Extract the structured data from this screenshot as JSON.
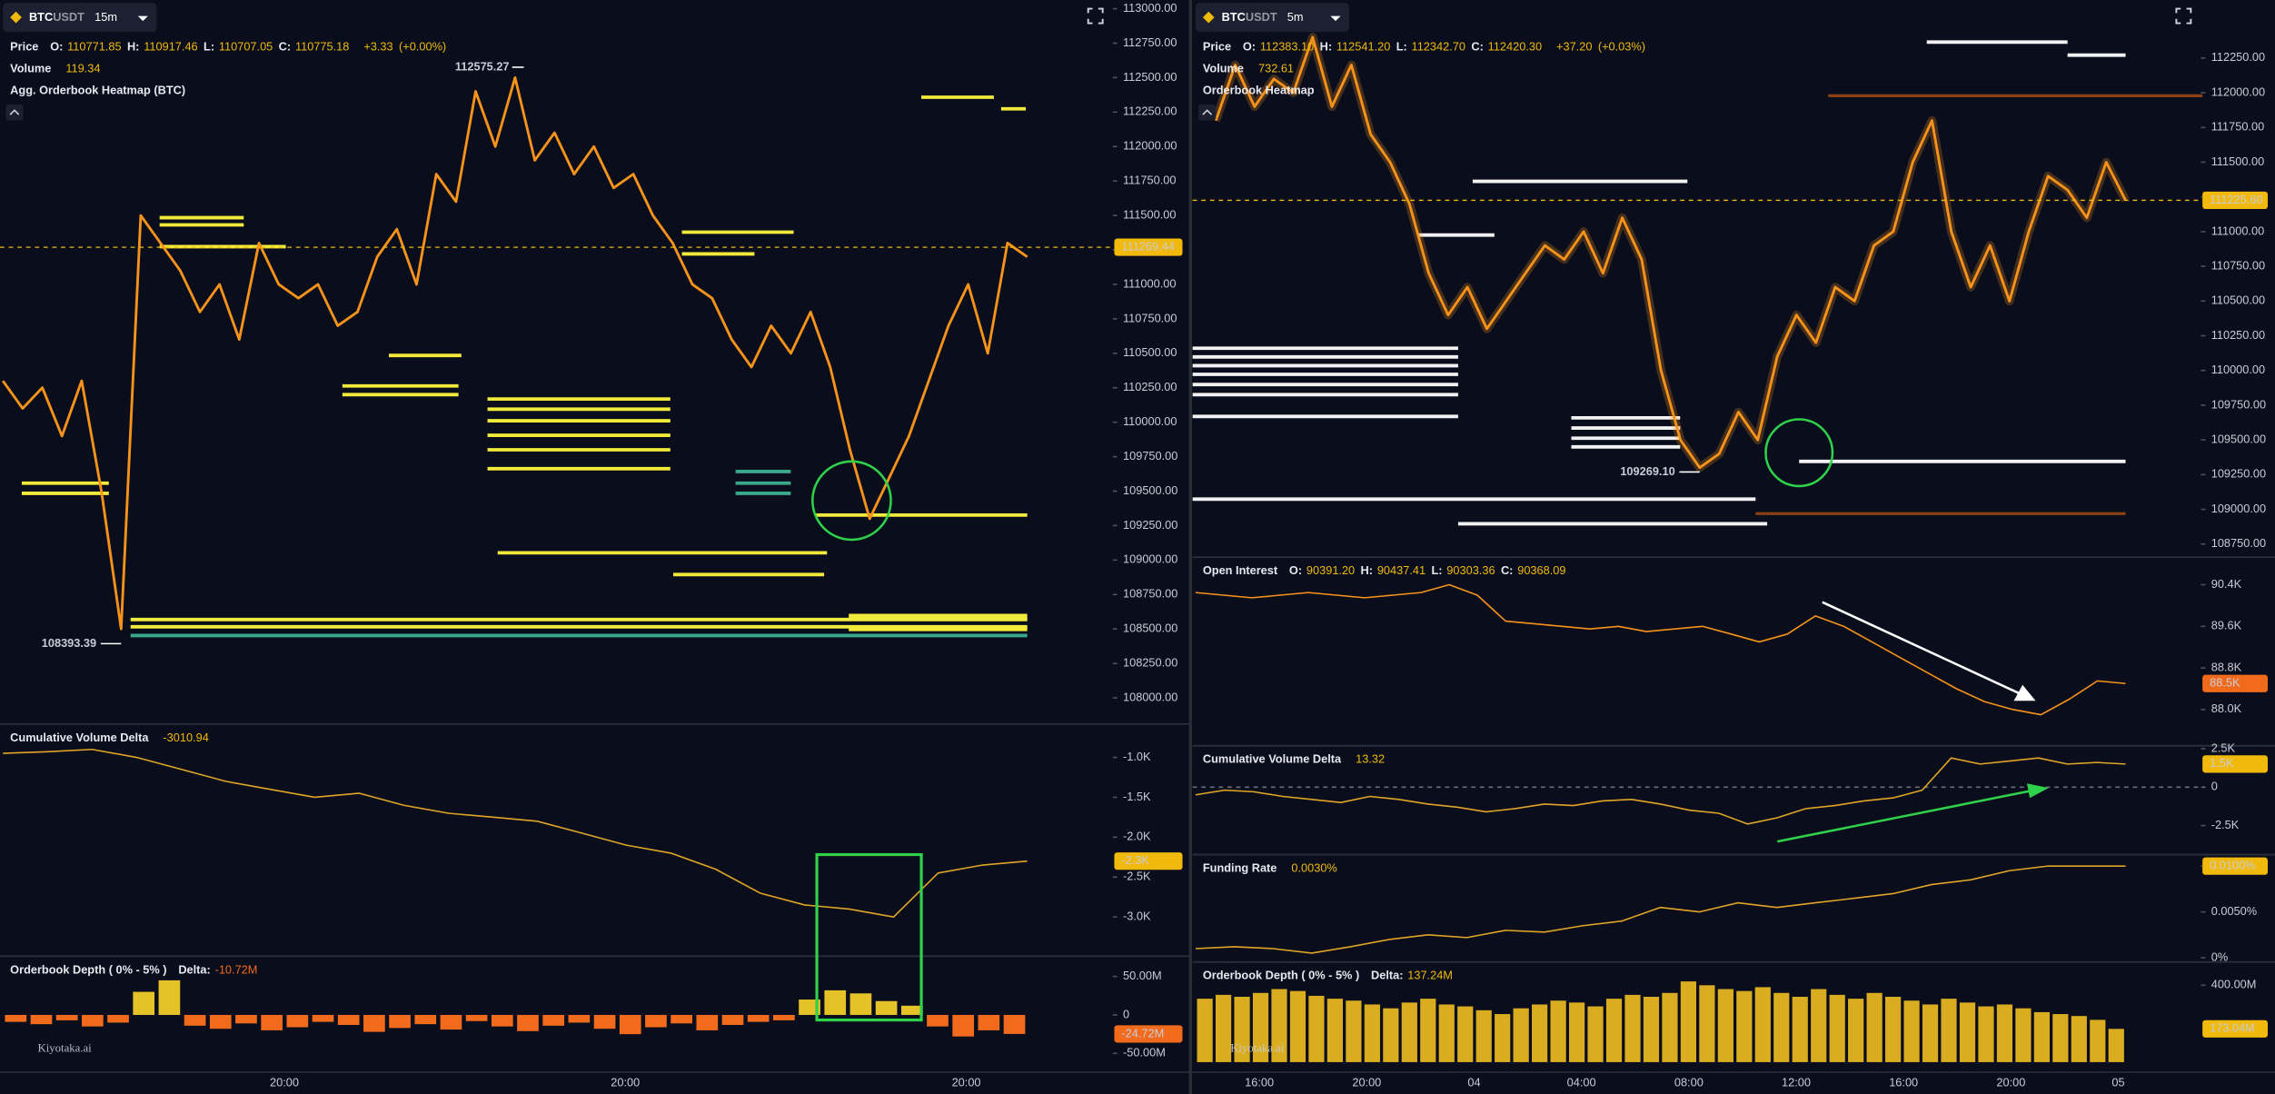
{
  "chart_data": [
    {
      "type": "line",
      "color": "#f7931a",
      "symbol": "BTC",
      "quote": "USDT",
      "interval": "15m",
      "header": [
        {
          "label": "Price",
          "fields": [
            {
              "key": "O:",
              "value": "110771.85"
            },
            {
              "key": "H:",
              "value": "110917.46"
            },
            {
              "key": "L:",
              "value": "110707.05"
            },
            {
              "key": "C:",
              "value": "110775.18"
            }
          ],
          "extra": [
            "+3.33",
            "(+0.00%)"
          ]
        },
        {
          "label": "Volume",
          "extra": [
            "119.34"
          ]
        },
        {
          "label": "Agg. Orderbook Heatmap (BTC)"
        }
      ],
      "ylim": [
        107821,
        113063
      ],
      "yticks": [
        {
          "value": 108000,
          "label": "108000.00"
        },
        {
          "value": 108250,
          "label": "108250.00"
        },
        {
          "value": 108500,
          "label": "108500.00"
        },
        {
          "value": 108750,
          "label": "108750.00"
        },
        {
          "value": 109000,
          "label": "109000.00"
        },
        {
          "value": 109250,
          "label": "109250.00"
        },
        {
          "value": 109500,
          "label": "109500.00"
        },
        {
          "value": 109750,
          "label": "109750.00"
        },
        {
          "value": 110000,
          "label": "110000.00"
        },
        {
          "value": 110250,
          "label": "110250.00"
        },
        {
          "value": 110500,
          "label": "110500.00"
        },
        {
          "value": 110750,
          "label": "110750.00"
        },
        {
          "value": 111000,
          "label": "111000.00"
        },
        {
          "value": 111250,
          "label": "111250.00"
        },
        {
          "value": 111500,
          "label": "111500.00"
        },
        {
          "value": 111750,
          "label": "111750.00"
        },
        {
          "value": 112000,
          "label": "112000.00"
        },
        {
          "value": 112250,
          "label": "112250.00"
        },
        {
          "value": 112500,
          "label": "112500.00"
        },
        {
          "value": 112750,
          "label": "112750.00"
        },
        {
          "value": 113000,
          "label": "113000.00"
        }
      ],
      "values": [
        110300,
        110100,
        110250,
        109900,
        110300,
        109500,
        108500,
        111500,
        111300,
        111100,
        110800,
        111000,
        110600,
        111300,
        111000,
        110900,
        111000,
        110700,
        110800,
        111200,
        111400,
        111000,
        111800,
        111600,
        112400,
        112000,
        112500,
        111900,
        112100,
        111800,
        112000,
        111700,
        111800,
        111500,
        111300,
        111000,
        110900,
        110600,
        110400,
        110700,
        110500,
        110800,
        110400,
        109800,
        109300,
        109600,
        109900,
        110300,
        110700,
        111000,
        110500,
        111300,
        111200
      ],
      "high": 112575.27,
      "low": 108393.39,
      "last": 111269.44,
      "last_line": true
    },
    {
      "type": "line",
      "color": "#e0a526",
      "header": [
        {
          "label": "Cumulative Volume Delta",
          "extra": [
            "-3010.94"
          ]
        }
      ],
      "ylim": [
        -3473,
        -600
      ],
      "yticks": [
        {
          "value": -1000,
          "label": "-1.0K"
        },
        {
          "value": -1500,
          "label": "-1.5K"
        },
        {
          "value": -2000,
          "label": "-2.0K"
        },
        {
          "value": -2500,
          "label": "-2.5K"
        },
        {
          "value": -3000,
          "label": "-3.0K"
        }
      ],
      "values": [
        -950,
        -930,
        -900,
        -1000,
        -1150,
        -1300,
        -1400,
        -1500,
        -1450,
        -1600,
        -1700,
        -1750,
        -1800,
        -1950,
        -2100,
        -2200,
        -2400,
        -2700,
        -2850,
        -2900,
        -3000,
        -2450,
        -2350,
        -2300
      ],
      "last": {
        "value": -2300,
        "label": "-2.3K"
      }
    },
    {
      "type": "bar",
      "color": "#e6c229",
      "negative_color": "#f26b1d",
      "tag_color": "#f26b1d",
      "readout_color": "#f26b1d",
      "header": [
        {
          "label": "Orderbook Depth ( 0% - 5% )",
          "fields": [
            {
              "key": "Delta:",
              "value": "-10.72M"
            }
          ]
        }
      ],
      "ylim": [
        -72600000,
        74500000
      ],
      "yticks": [
        {
          "value": 50000000,
          "label": "50.00M"
        },
        0,
        {
          "value": -50000000,
          "label": "-50.00M"
        }
      ],
      "values": [
        -9000000,
        -12000000,
        -7000000,
        -15000000,
        -10000000,
        30000000,
        45000000,
        -14000000,
        -18000000,
        -11000000,
        -20000000,
        -16000000,
        -9000000,
        -13000000,
        -22000000,
        -17000000,
        -12000000,
        -19000000,
        -8000000,
        -15000000,
        -21000000,
        -14000000,
        -10000000,
        -18000000,
        -25000000,
        -16000000,
        -11000000,
        -20000000,
        -13000000,
        -9000000,
        -7000000,
        20000000,
        32000000,
        28000000,
        18000000,
        12000000,
        -15000000,
        -28000000,
        -20000000,
        -24720000
      ],
      "last": {
        "value": -24720000,
        "label": "-24.72M"
      },
      "watermark": "Kiyotaka.ai",
      "xlabels": [
        "20:00",
        "20:00",
        "20:00"
      ]
    },
    {
      "type": "line",
      "color": "#f7931a",
      "glow": true,
      "symbol": "BTC",
      "quote": "USDT",
      "interval": "5m",
      "header": [
        {
          "label": "Price",
          "fields": [
            {
              "key": "O:",
              "value": "112383.10"
            },
            {
              "key": "H:",
              "value": "112541.20"
            },
            {
              "key": "L:",
              "value": "112342.70"
            },
            {
              "key": "C:",
              "value": "112420.30"
            }
          ],
          "extra": [
            "+37.20",
            "(+0.03%)"
          ]
        },
        {
          "label": "Volume",
          "extra": [
            "732.61"
          ]
        },
        {
          "label": "Orderbook Heatmap"
        }
      ],
      "ylim": [
        108666,
        112668
      ],
      "yticks": [
        {
          "value": 108750,
          "label": "108750.00"
        },
        {
          "value": 109000,
          "label": "109000.00"
        },
        {
          "value": 109250,
          "label": "109250.00"
        },
        {
          "value": 109500,
          "label": "109500.00"
        },
        {
          "value": 109750,
          "label": "109750.00"
        },
        {
          "value": 110000,
          "label": "110000.00"
        },
        {
          "value": 110250,
          "label": "110250.00"
        },
        {
          "value": 110500,
          "label": "110500.00"
        },
        {
          "value": 110750,
          "label": "110750.00"
        },
        {
          "value": 111000,
          "label": "111000.00"
        },
        {
          "value": 111250,
          "label": "111250.00"
        },
        {
          "value": 111500,
          "label": "111500.00"
        },
        {
          "value": 111750,
          "label": "111750.00"
        },
        {
          "value": 112000,
          "label": "112000.00"
        },
        {
          "value": 112250,
          "label": "112250.00"
        }
      ],
      "values": [
        111800,
        112200,
        111900,
        112100,
        112000,
        112400,
        111900,
        112200,
        111700,
        111500,
        111200,
        110700,
        110400,
        110600,
        110300,
        110500,
        110700,
        110900,
        110800,
        111000,
        110700,
        111100,
        110800,
        110000,
        109500,
        109300,
        109400,
        109700,
        109500,
        110100,
        110400,
        110200,
        110600,
        110500,
        110900,
        111000,
        111500,
        111800,
        111000,
        110600,
        110900,
        110500,
        111000,
        111400,
        111300,
        111100,
        111500,
        111225.6
      ],
      "low": {
        "value": 109269.1,
        "label": "109269.10"
      },
      "last": {
        "value": 111225.6,
        "label": "111225.60"
      },
      "last_line": true
    },
    {
      "type": "line",
      "color": "#f7931a",
      "tag_color": "#f26b1d",
      "header": [
        {
          "label": "Open Interest",
          "fields": [
            {
              "key": "O:",
              "value": "90391.20"
            },
            {
              "key": "H:",
              "value": "90437.41"
            },
            {
              "key": "L:",
              "value": "90303.36"
            },
            {
              "key": "C:",
              "value": "90368.09"
            }
          ]
        }
      ],
      "ylim": [
        87331,
        90902
      ],
      "yticks": [
        {
          "value": 90400,
          "label": "90.4K"
        },
        {
          "value": 89600,
          "label": "89.6K"
        },
        {
          "value": 88800,
          "label": "88.8K"
        },
        {
          "value": 88000,
          "label": "88.0K"
        }
      ],
      "values": [
        90250,
        90200,
        90150,
        90200,
        90250,
        90200,
        90150,
        90200,
        90250,
        90400,
        90200,
        89700,
        89650,
        89600,
        89550,
        89600,
        89500,
        89550,
        89600,
        89450,
        89300,
        89450,
        89800,
        89600,
        89300,
        89000,
        88700,
        88400,
        88150,
        88000,
        87900,
        88200,
        88550,
        88500
      ],
      "last": {
        "value": 88500,
        "label": "88.5K"
      }
    },
    {
      "type": "line",
      "color": "#e0a526",
      "zero_line": true,
      "header": [
        {
          "label": "Cumulative Volume Delta",
          "extra": [
            "13.32"
          ]
        }
      ],
      "ylim": [
        -4292,
        2594
      ],
      "yticks": [
        {
          "value": 2500,
          "label": "2.5K"
        },
        0,
        {
          "value": -2500,
          "label": "-2.5K"
        }
      ],
      "values": [
        -500,
        -200,
        -300,
        -600,
        -800,
        -1000,
        -600,
        -800,
        -1100,
        -1300,
        -1600,
        -1400,
        -1100,
        -1200,
        -900,
        -800,
        -1100,
        -1500,
        -1700,
        -2400,
        -2000,
        -1400,
        -1200,
        -900,
        -700,
        -200,
        1900,
        1500,
        1700,
        1900,
        1500,
        1600,
        1500
      ],
      "last": {
        "value": 1500,
        "label": "1.5K"
      }
    },
    {
      "type": "line",
      "color": "#e0a526",
      "header": [
        {
          "label": "Funding Rate",
          "extra": [
            "0.0030%"
          ]
        }
      ],
      "ylim": [
        -0.0003,
        0.0111
      ],
      "yticks": [
        {
          "value": 0.01,
          "label": "0.0100%"
        },
        {
          "value": 0.005,
          "label": "0.0050%"
        },
        {
          "value": 0,
          "label": "0%"
        }
      ],
      "values": [
        0.001,
        0.0012,
        0.001,
        0.0005,
        0.0012,
        0.002,
        0.0025,
        0.0022,
        0.003,
        0.0028,
        0.0035,
        0.004,
        0.0055,
        0.005,
        0.006,
        0.0055,
        0.006,
        0.0065,
        0.007,
        0.008,
        0.0085,
        0.0095,
        0.01,
        0.01,
        0.01
      ],
      "last": {
        "value": 0.01,
        "label": "0.0100%"
      }
    },
    {
      "type": "bar",
      "color": "#d9ad1f",
      "header": [
        {
          "label": "Orderbook Depth ( 0% - 5% )",
          "fields": [
            {
              "key": "Delta:",
              "value": "137.24M"
            }
          ]
        }
      ],
      "ylim": [
        -45000000,
        513600000
      ],
      "yticks": [
        {
          "value": 400000000,
          "label": "400.00M"
        }
      ],
      "values": [
        330000000,
        350000000,
        340000000,
        360000000,
        380000000,
        370000000,
        345000000,
        330000000,
        320000000,
        300000000,
        280000000,
        310000000,
        330000000,
        300000000,
        290000000,
        270000000,
        250000000,
        280000000,
        300000000,
        320000000,
        310000000,
        290000000,
        330000000,
        350000000,
        340000000,
        360000000,
        420000000,
        400000000,
        380000000,
        370000000,
        390000000,
        360000000,
        340000000,
        380000000,
        350000000,
        330000000,
        360000000,
        340000000,
        320000000,
        300000000,
        330000000,
        310000000,
        290000000,
        300000000,
        280000000,
        260000000,
        250000000,
        240000000,
        220000000,
        173040000
      ],
      "last": {
        "value": 173040000,
        "label": "173.04M"
      },
      "watermark": "Kiyotaka.ai",
      "xlabels": [
        "16:00",
        "20:00",
        "04",
        "04:00",
        "08:00",
        "12:00",
        "16:00",
        "20:00",
        "05"
      ]
    }
  ]
}
